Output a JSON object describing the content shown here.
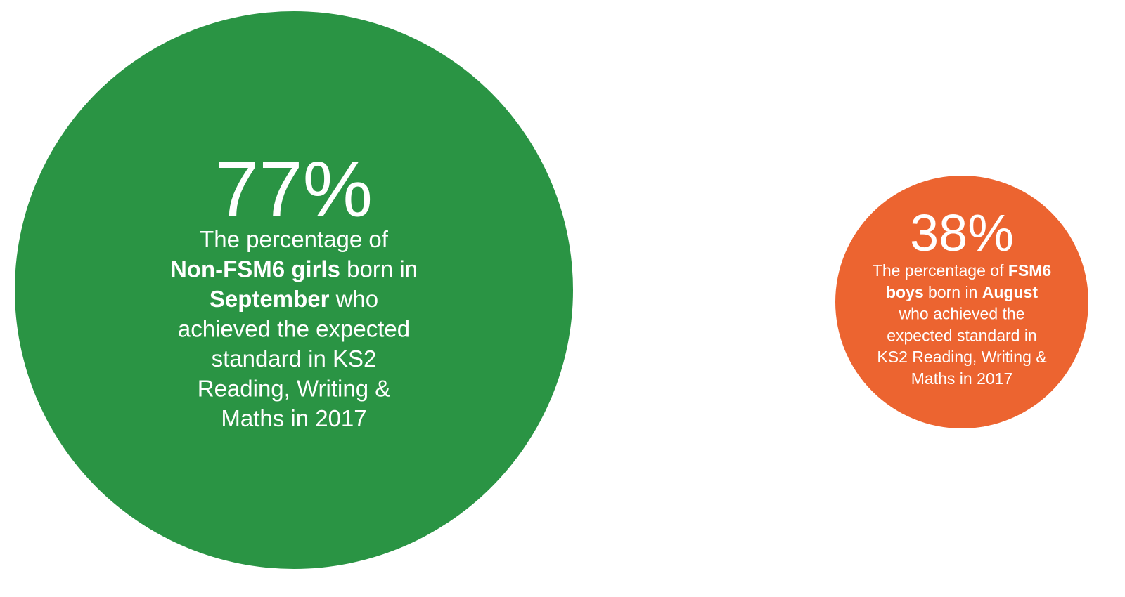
{
  "items": [
    {
      "value": "77%",
      "lines": [
        [
          {
            "text": "The percentage of"
          }
        ],
        [
          {
            "text": "Non-FSM6 girls",
            "bold": true
          },
          {
            "text": " born in"
          }
        ],
        [
          {
            "text": "September",
            "bold": true
          },
          {
            "text": " who"
          }
        ],
        [
          {
            "text": "achieved the expected"
          }
        ],
        [
          {
            "text": "standard in KS2"
          }
        ],
        [
          {
            "text": "Reading, Writing &"
          }
        ],
        [
          {
            "text": "Maths in 2017"
          }
        ]
      ]
    },
    {
      "value": "38%",
      "lines": [
        [
          {
            "text": "The percentage of "
          },
          {
            "text": "FSM6",
            "bold": true
          }
        ],
        [
          {
            "text": "boys",
            "bold": true
          },
          {
            "text": " born in "
          },
          {
            "text": "August",
            "bold": true
          }
        ],
        [
          {
            "text": "who achieved the"
          }
        ],
        [
          {
            "text": "expected standard in"
          }
        ],
        [
          {
            "text": "KS2 Reading, Writing &"
          }
        ],
        [
          {
            "text": "Maths in 2017"
          }
        ]
      ]
    }
  ]
}
